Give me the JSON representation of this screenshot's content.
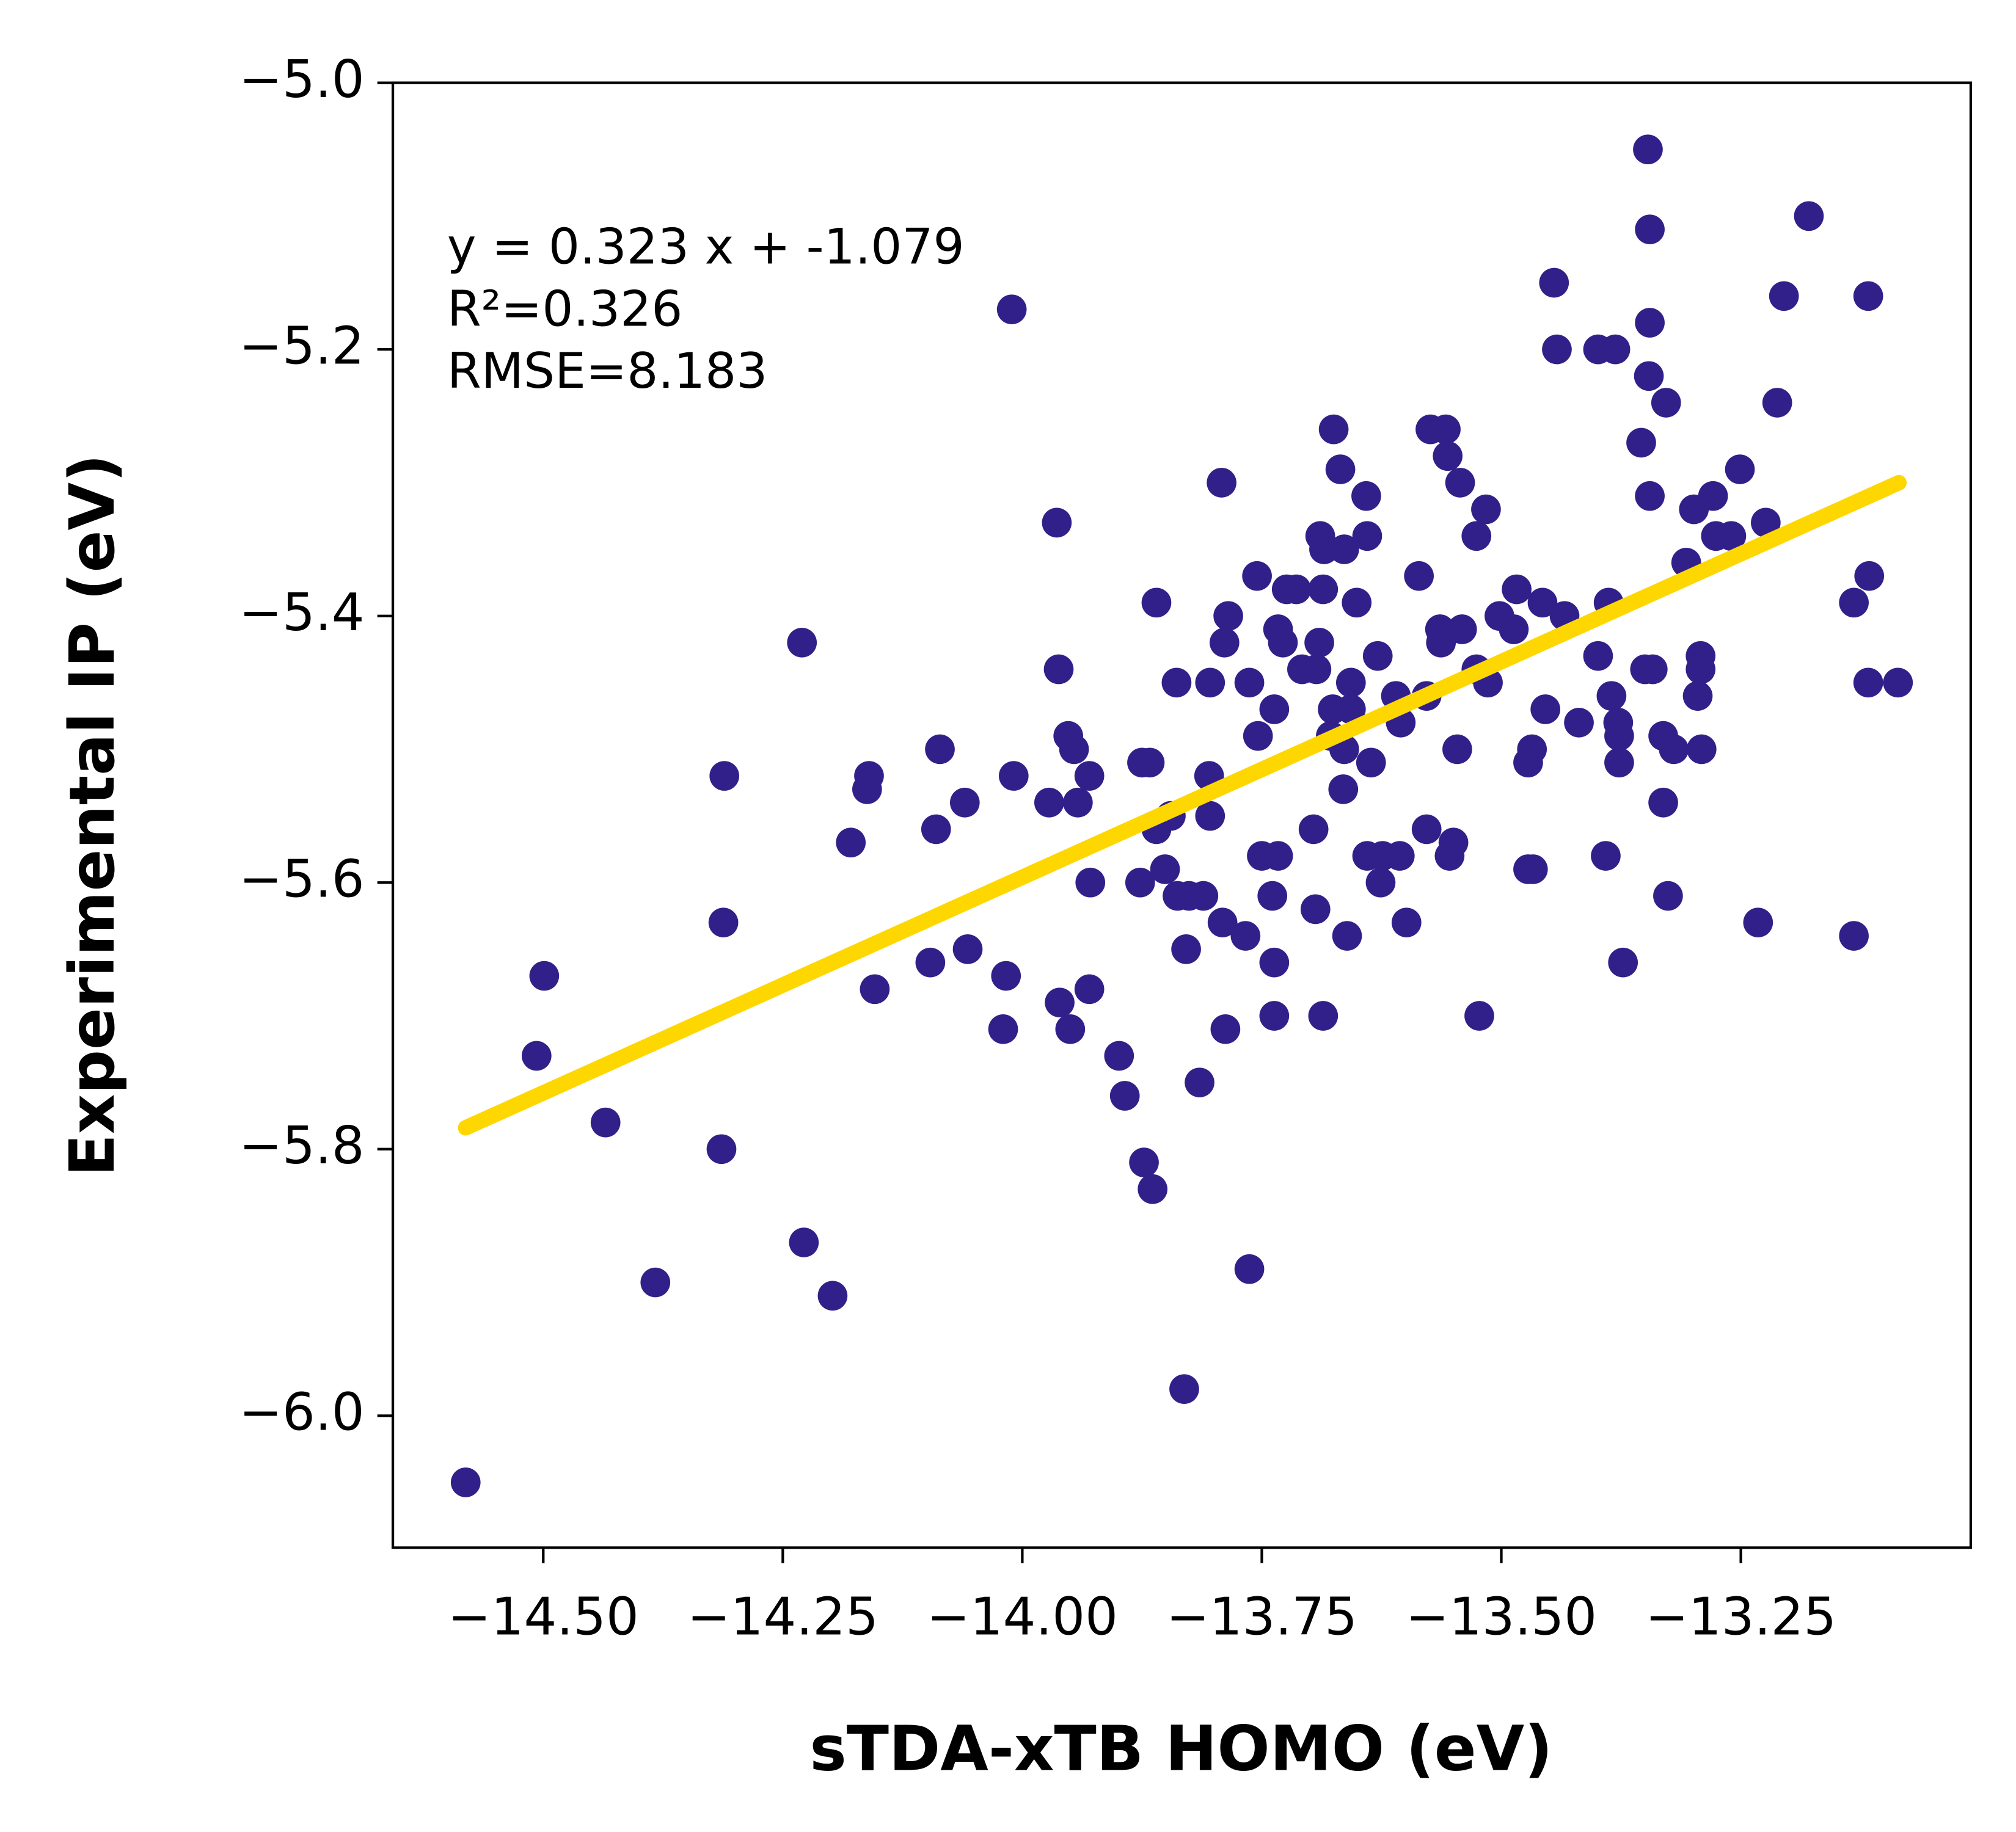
{
  "chart_data": {
    "type": "scatter",
    "xlabel": "sTDA-xTB HOMO (eV)",
    "ylabel": "Experimental IP (eV)",
    "annotations": [
      "y = 0.323 x + -1.079",
      "R²=0.326",
      "RMSE=8.183"
    ],
    "color": "#31208a",
    "xlim": [
      -14.657,
      -13.01
    ],
    "ylim": [
      -6.099,
      -5.0
    ],
    "xticks": [
      {
        "value": -14.5,
        "label": "−14.50"
      },
      {
        "value": -14.25,
        "label": "−14.25"
      },
      {
        "value": -14.0,
        "label": "−14.00"
      },
      {
        "value": -13.75,
        "label": "−13.75"
      },
      {
        "value": -13.5,
        "label": "−13.50"
      },
      {
        "value": -13.25,
        "label": "−13.25"
      }
    ],
    "yticks": [
      {
        "value": -6.0,
        "label": "−6.0"
      },
      {
        "value": -5.8,
        "label": "−5.8"
      },
      {
        "value": -5.6,
        "label": "−5.6"
      },
      {
        "value": -5.4,
        "label": "−5.4"
      },
      {
        "value": -5.2,
        "label": "−5.2"
      },
      {
        "value": -5.0,
        "label": "−5.0"
      }
    ],
    "fit_line": {
      "color": "#ffd700",
      "x": [
        -14.581,
        -13.085
      ],
      "y": [
        -5.784,
        -5.3
      ]
    },
    "x": [
      -14.581,
      -14.499,
      -14.507,
      -14.435,
      -14.383,
      -14.311,
      -14.312,
      -14.314,
      -14.23,
      -14.228,
      -14.198,
      -14.179,
      -14.16,
      -14.162,
      -14.154,
      -14.086,
      -14.09,
      -14.096,
      -14.06,
      -14.057,
      -14.011,
      -14.009,
      -14.017,
      -14.02,
      -13.964,
      -13.962,
      -13.972,
      -13.952,
      -13.946,
      -13.93,
      -13.942,
      -13.929,
      -13.961,
      -13.95,
      -13.93,
      -13.899,
      -13.893,
      -13.873,
      -13.864,
      -13.86,
      -13.875,
      -13.867,
      -13.877,
      -13.86,
      -13.851,
      -13.845,
      -13.839,
      -13.838,
      -13.829,
      -13.826,
      -13.811,
      -13.815,
      -13.831,
      -13.804,
      -13.805,
      -13.804,
      -13.792,
      -13.789,
      -13.785,
      -13.791,
      -13.788,
      -13.767,
      -13.763,
      -13.763,
      -13.755,
      -13.754,
      -13.75,
      -13.737,
      -13.733,
      -13.728,
      -13.739,
      -13.737,
      -13.737,
      -13.733,
      -13.724,
      -13.714,
      -13.708,
      -13.693,
      -13.69,
      -13.696,
      -13.694,
      -13.686,
      -13.689,
      -13.685,
      -13.686,
      -13.675,
      -13.676,
      -13.678,
      -13.668,
      -13.664,
      -13.665,
      -13.664,
      -13.657,
      -13.657,
      -13.661,
      -13.651,
      -13.641,
      -13.64,
      -13.636,
      -13.64,
      -13.629,
      -13.626,
      -13.624,
      -13.61,
      -13.605,
      -13.606,
      -13.599,
      -13.586,
      -13.578,
      -13.578,
      -13.574,
      -13.558,
      -13.556,
      -13.564,
      -13.563,
      -13.554,
      -13.55,
      -13.543,
      -13.541,
      -13.546,
      -13.526,
      -13.523,
      -13.516,
      -13.526,
      -13.514,
      -13.502,
      -13.484,
      -13.487,
      -13.472,
      -13.468,
      -13.472,
      -13.467,
      -13.457,
      -13.454,
      -13.445,
      -13.442,
      -13.434,
      -13.419,
      -13.399,
      -13.381,
      -13.399,
      -13.391,
      -13.388,
      -13.385,
      -13.378,
      -13.377,
      -13.377,
      -13.373,
      -13.354,
      -13.347,
      -13.345,
      -13.345,
      -13.346,
      -13.345,
      -13.35,
      -13.342,
      -13.328,
      -13.331,
      -13.331,
      -13.326,
      -13.32,
      -13.307,
      -13.299,
      -13.292,
      -13.292,
      -13.295,
      -13.291,
      -13.279,
      -13.276,
      -13.26,
      -13.251,
      -13.224,
      -13.232,
      -13.212,
      -13.205,
      -13.179,
      -13.132,
      -13.132,
      -13.117,
      -13.116,
      -13.117,
      -13.086
    ],
    "y": [
      -6.05,
      -5.67,
      -5.73,
      -5.78,
      -5.9,
      -5.52,
      -5.63,
      -5.8,
      -5.42,
      -5.87,
      -5.91,
      -5.57,
      -5.52,
      -5.53,
      -5.68,
      -5.5,
      -5.56,
      -5.66,
      -5.54,
      -5.65,
      -5.17,
      -5.52,
      -5.67,
      -5.71,
      -5.33,
      -5.44,
      -5.54,
      -5.49,
      -5.5,
      -5.52,
      -5.54,
      -5.6,
      -5.69,
      -5.71,
      -5.68,
      -5.73,
      -5.76,
      -5.81,
      -5.83,
      -5.39,
      -5.51,
      -5.51,
      -5.6,
      -5.56,
      -5.59,
      -5.55,
      -5.45,
      -5.61,
      -5.65,
      -5.61,
      -5.61,
      -5.75,
      -5.98,
      -5.45,
      -5.52,
      -5.55,
      -5.3,
      -5.42,
      -5.4,
      -5.63,
      -5.71,
      -5.64,
      -5.45,
      -5.89,
      -5.37,
      -5.49,
      -5.58,
      -5.47,
      -5.41,
      -5.42,
      -5.61,
      -5.66,
      -5.7,
      -5.58,
      -5.38,
      -5.38,
      -5.44,
      -5.44,
      -5.42,
      -5.56,
      -5.62,
      -5.7,
      -5.34,
      -5.35,
      -5.38,
      -5.26,
      -5.47,
      -5.49,
      -5.29,
      -5.35,
      -5.53,
      -5.5,
      -5.45,
      -5.47,
      -5.64,
      -5.39,
      -5.31,
      -5.34,
      -5.51,
      -5.58,
      -5.43,
      -5.6,
      -5.58,
      -5.46,
      -5.48,
      -5.58,
      -5.63,
      -5.37,
      -5.46,
      -5.56,
      -5.26,
      -5.26,
      -5.28,
      -5.41,
      -5.42,
      -5.58,
      -5.57,
      -5.3,
      -5.41,
      -5.5,
      -5.34,
      -5.7,
      -5.32,
      -5.44,
      -5.45,
      -5.4,
      -5.38,
      -5.41,
      -5.51,
      -5.5,
      -5.59,
      -5.59,
      -5.39,
      -5.47,
      -5.15,
      -5.2,
      -5.4,
      -5.48,
      -5.2,
      -5.2,
      -5.43,
      -5.58,
      -5.39,
      -5.46,
      -5.48,
      -5.49,
      -5.51,
      -5.66,
      -5.27,
      -5.05,
      -5.11,
      -5.18,
      -5.22,
      -5.31,
      -5.44,
      -5.44,
      -5.24,
      -5.49,
      -5.54,
      -5.61,
      -5.5,
      -5.36,
      -5.32,
      -5.43,
      -5.44,
      -5.46,
      -5.5,
      -5.31,
      -5.34,
      -5.34,
      -5.29,
      -5.33,
      -5.63,
      -5.24,
      -5.16,
      -5.1,
      -5.39,
      -5.64,
      -5.16,
      -5.37,
      -5.45,
      -5.45
    ]
  }
}
